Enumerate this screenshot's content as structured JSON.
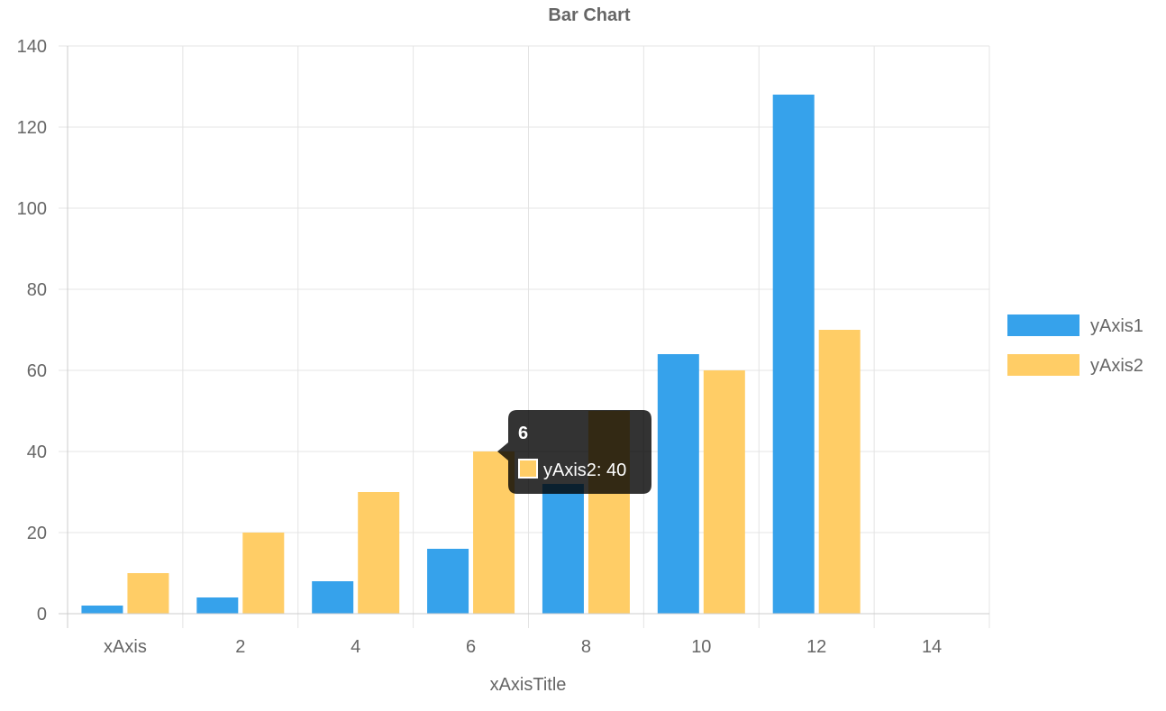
{
  "chart_data": {
    "type": "bar",
    "title": "Bar Chart",
    "xlabel": "xAxisTitle",
    "ylabel": "",
    "categories": [
      "xAxis",
      "2",
      "4",
      "6",
      "8",
      "10",
      "12",
      "14"
    ],
    "series": [
      {
        "name": "yAxis1",
        "color": "#36a2eb",
        "values": [
          2,
          4,
          8,
          16,
          32,
          64,
          128,
          null
        ]
      },
      {
        "name": "yAxis2",
        "color": "#ffcd66",
        "values": [
          10,
          20,
          30,
          40,
          50,
          60,
          70,
          null
        ]
      }
    ],
    "ylim": [
      0,
      140
    ],
    "yticks": [
      "0",
      "20",
      "40",
      "60",
      "80",
      "100",
      "120",
      "140"
    ],
    "grid": true,
    "legend_position": "right",
    "tooltip": {
      "title": "6",
      "label": "yAxis2: 40",
      "swatch_color": "#ffcd66"
    }
  }
}
